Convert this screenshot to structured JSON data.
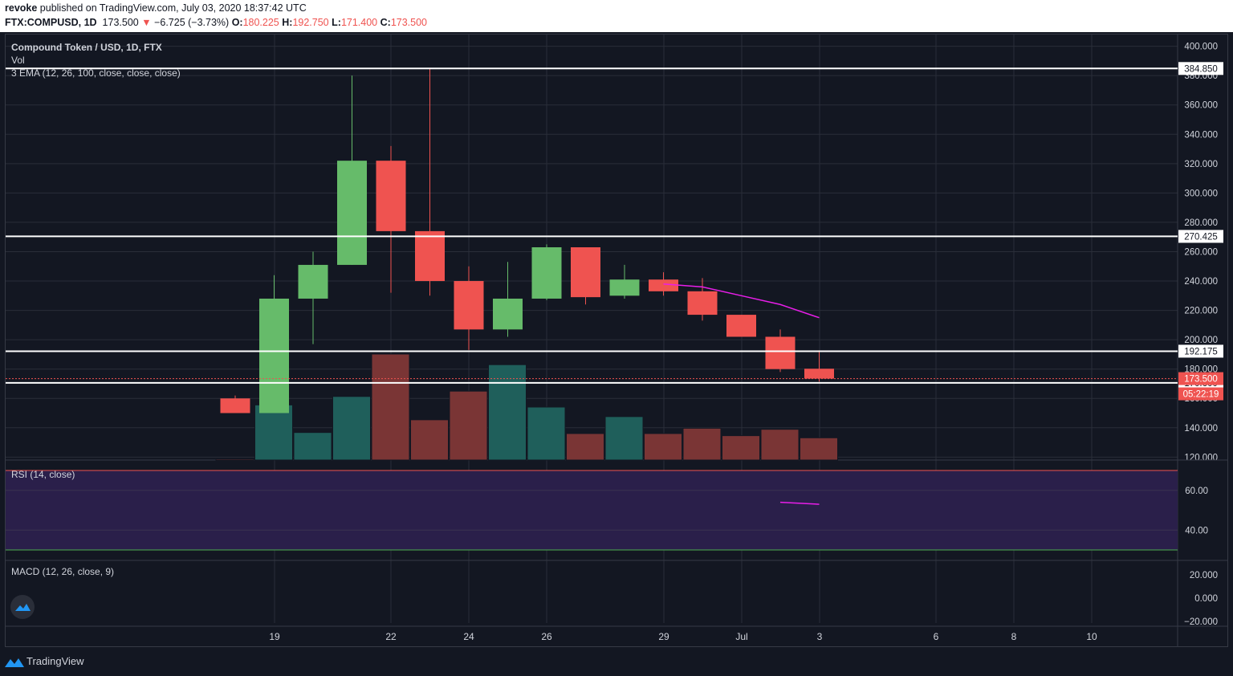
{
  "header": {
    "author": "revoke",
    "published_text": "published on TradingView.com, July 03, 2020 18:37:42 UTC",
    "symbol": "FTX:COMPUSD, 1D",
    "last": "173.500",
    "change": "−6.725 (−3.73%)",
    "o_label": "O:",
    "o_value": "180.225",
    "h_label": "H:",
    "h_value": "192.750",
    "l_label": "L:",
    "l_value": "171.400",
    "c_label": "C:",
    "c_value": "173.500"
  },
  "legend": {
    "title": "Compound Token / USD, 1D, FTX",
    "vol": "Vol",
    "ema": "3 EMA (12, 26, 100, close, close, close)"
  },
  "rsi_label": "RSI (14, close)",
  "macd_label": "MACD (12, 26, close, 9)",
  "brand": "TradingView",
  "colors": {
    "up": "#26a69a",
    "down": "#ef5350",
    "up_candle": "#66bb6a",
    "down_candle": "#ef5350",
    "ema": "#e91ee9",
    "rsi_band": "#2a1f4a"
  },
  "chart_data": {
    "type": "candlestick",
    "price_axis": {
      "ticks": [
        "400.000",
        "380.000",
        "360.000",
        "340.000",
        "320.000",
        "300.000",
        "280.000",
        "260.000",
        "240.000",
        "220.000",
        "200.000",
        "180.000",
        "160.000",
        "140.000",
        "120.000"
      ],
      "ylim": [
        118,
        408
      ]
    },
    "x_axis_ticks": [
      "19",
      "22",
      "24",
      "26",
      "29",
      "Jul",
      "3",
      "6",
      "8",
      "10"
    ],
    "candles": [
      {
        "o": 160,
        "h": 162,
        "l": 150,
        "c": 150
      },
      {
        "o": 150,
        "h": 244,
        "l": 150,
        "c": 228
      },
      {
        "o": 228,
        "h": 260,
        "l": 197,
        "c": 251
      },
      {
        "o": 251,
        "h": 380,
        "l": 251,
        "c": 322
      },
      {
        "o": 322,
        "h": 332,
        "l": 232,
        "c": 274
      },
      {
        "o": 274,
        "h": 384.85,
        "l": 230,
        "c": 240
      },
      {
        "o": 240,
        "h": 250,
        "l": 193,
        "c": 207
      },
      {
        "o": 207,
        "h": 253,
        "l": 202,
        "c": 228
      },
      {
        "o": 228,
        "h": 265,
        "l": 227,
        "c": 263
      },
      {
        "o": 263,
        "h": 263,
        "l": 224,
        "c": 229
      },
      {
        "o": 230,
        "h": 251,
        "l": 228,
        "c": 241
      },
      {
        "o": 241,
        "h": 246,
        "l": 230,
        "c": 233
      },
      {
        "o": 233,
        "h": 242,
        "l": 213,
        "c": 217
      },
      {
        "o": 217,
        "h": 217,
        "l": 202,
        "c": 202
      },
      {
        "o": 202,
        "h": 207,
        "l": 178,
        "c": 180
      },
      {
        "o": 180.225,
        "h": 192.75,
        "l": 171.4,
        "c": 173.5
      }
    ],
    "volume_relative": [
      0.01,
      0.52,
      0.26,
      0.6,
      1.0,
      0.38,
      0.65,
      0.9,
      0.5,
      0.25,
      0.41,
      0.25,
      0.3,
      0.23,
      0.29,
      0.21
    ],
    "horizontal_levels": [
      "384.850",
      "270.425",
      "192.175",
      "170.600"
    ],
    "current_price": "173.500",
    "countdown": "05:22:19",
    "ema_points": [
      {
        "i": 11,
        "v": 238
      },
      {
        "i": 12,
        "v": 236
      },
      {
        "i": 13,
        "v": 230
      },
      {
        "i": 14,
        "v": 224
      },
      {
        "i": 15,
        "v": 215
      }
    ],
    "rsi": {
      "ticks": [
        "60.00",
        "40.00"
      ],
      "points": [
        {
          "i": 14,
          "v": 54
        },
        {
          "i": 15,
          "v": 53
        }
      ]
    },
    "macd": {
      "ticks": [
        "20.000",
        "0.000",
        "−20.000"
      ]
    }
  }
}
